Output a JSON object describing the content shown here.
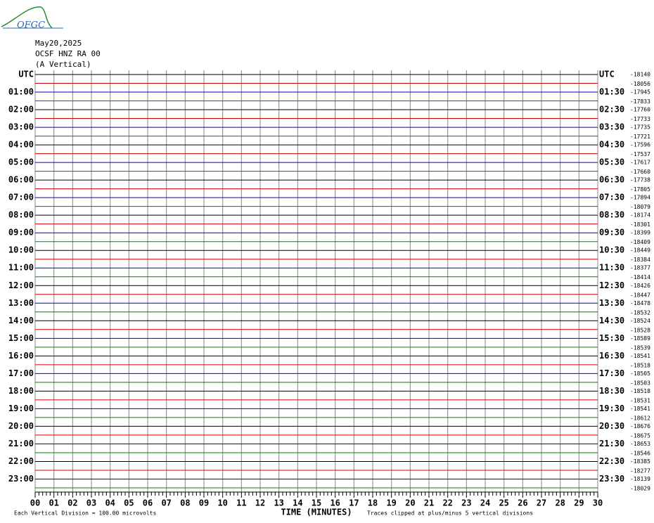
{
  "logo": "OFGC",
  "header": {
    "date": "May20,2025",
    "station": "OCSF HNZ RA 00",
    "component": "(A Vertical)"
  },
  "chart_data": {
    "type": "helicorder",
    "left_labels": [
      "UTC",
      "01:00",
      "02:00",
      "03:00",
      "04:00",
      "05:00",
      "06:00",
      "07:00",
      "08:00",
      "09:00",
      "10:00",
      "11:00",
      "12:00",
      "13:00",
      "14:00",
      "15:00",
      "16:00",
      "17:00",
      "18:00",
      "19:00",
      "20:00",
      "21:00",
      "22:00",
      "23:00"
    ],
    "right_labels": [
      "UTC",
      "01:30",
      "02:30",
      "03:30",
      "04:30",
      "05:30",
      "06:30",
      "07:30",
      "08:30",
      "09:30",
      "10:30",
      "11:30",
      "12:30",
      "13:30",
      "14:30",
      "15:30",
      "16:30",
      "17:30",
      "18:30",
      "19:30",
      "20:30",
      "21:30",
      "22:30",
      "23:30"
    ],
    "offsets": [
      -18140,
      -18056,
      -17945,
      -17833,
      -17760,
      -17733,
      -17735,
      -17721,
      -17596,
      -17537,
      -17617,
      -17660,
      -17738,
      -17805,
      -17894,
      -18079,
      -18174,
      -18301,
      -18399,
      -18409,
      -18449,
      -18384,
      -18377,
      -18414,
      -18426,
      -18447,
      -18478,
      -18532,
      -18524,
      -18528,
      -18589,
      -18539,
      -18541,
      -18518,
      -18505,
      -18503,
      -18518,
      -18531,
      -18541,
      -18612,
      -18676,
      -18675,
      -18653,
      -18546,
      -18385,
      -18277,
      -18139,
      -18029
    ],
    "trace_colors": [
      "#000000",
      "#d00000",
      "#0000d0",
      "#008000"
    ],
    "xlim": [
      0,
      30
    ],
    "xticks": [
      {
        "value": 0,
        "label": "00"
      },
      {
        "value": 1,
        "label": "01"
      },
      {
        "value": 2,
        "label": "02"
      },
      {
        "value": 3,
        "label": "03"
      },
      {
        "value": 4,
        "label": "04"
      },
      {
        "value": 5,
        "label": "05"
      },
      {
        "value": 6,
        "label": "06"
      },
      {
        "value": 7,
        "label": "07"
      },
      {
        "value": 8,
        "label": "08"
      },
      {
        "value": 9,
        "label": "09"
      },
      10,
      11,
      12,
      13,
      14,
      15,
      16,
      17,
      18,
      19,
      20,
      21,
      22,
      23,
      24,
      25,
      26,
      27,
      28,
      29,
      30
    ],
    "minor_ticks_per_minute": 5,
    "xlabel": "TIME (MINUTES)",
    "grid": true,
    "footnote_left": "Each Vertical Division =  100.00 microvolts",
    "footnote_right": "Traces clipped at plus/minus 5 vertical divisions"
  }
}
